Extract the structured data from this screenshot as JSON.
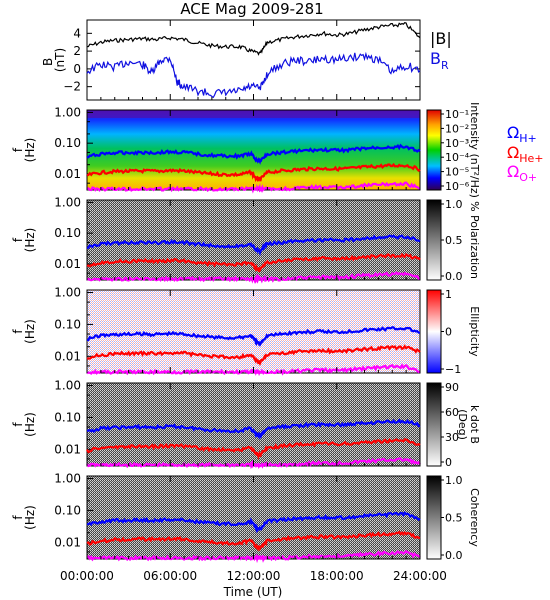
{
  "figure": {
    "title": "ACE Mag 2009-281",
    "xlabel": "Time (UT)",
    "xticks": [
      "00:00:00",
      "06:00:00",
      "12:00:00",
      "18:00:00",
      "24:00:00"
    ]
  },
  "legend": {
    "bmag": "|B|",
    "br_main": "B",
    "br_sub": "R",
    "omega": "Ω",
    "h_sub": "H+",
    "he_sub": "He+",
    "o_sub": "O+"
  },
  "colors": {
    "bmag": "#000000",
    "br": "#1010e0",
    "hplus": "#0000ff",
    "heplus": "#ff0000",
    "oplus": "#ff00ff"
  },
  "chart_data": [
    {
      "type": "line",
      "panel": "magnetic-field",
      "ylabel": "B",
      "yunit": "(nT)",
      "yticks": [
        "4",
        "2",
        "0",
        "−2"
      ],
      "ylim": [
        -3.5,
        5.5
      ],
      "xlim": [
        0,
        24
      ],
      "series": [
        {
          "name": "|B|",
          "x": [
            0,
            1,
            2,
            3,
            4,
            5,
            6,
            7,
            8,
            9,
            10,
            11,
            11.8,
            12.5,
            13,
            14,
            15,
            16,
            17,
            18,
            19,
            20,
            21,
            22,
            23,
            24
          ],
          "values": [
            2.5,
            3.0,
            3.2,
            3.3,
            3.4,
            3.3,
            3.5,
            3.3,
            2.9,
            2.6,
            2.5,
            2.5,
            2.0,
            1.7,
            3.0,
            3.3,
            3.6,
            3.8,
            4.0,
            3.8,
            4.0,
            4.4,
            4.7,
            4.9,
            5.0,
            3.5
          ]
        },
        {
          "name": "B_R",
          "x": [
            0,
            1,
            2,
            3,
            4,
            4.7,
            5.3,
            6,
            6.5,
            7,
            8,
            9,
            10,
            11,
            11.8,
            12.5,
            13,
            14,
            15,
            16,
            17,
            18,
            19,
            20,
            21,
            22,
            23,
            24
          ],
          "values": [
            -0.3,
            0.5,
            0.2,
            0.8,
            0.5,
            -0.5,
            1.0,
            1.2,
            -1.5,
            -2.0,
            -2.5,
            -2.8,
            -2.7,
            -2.5,
            -2.0,
            -2.2,
            -0.5,
            0.5,
            1.0,
            0.8,
            1.2,
            1.0,
            1.3,
            1.5,
            1.0,
            -0.4,
            0.4,
            -0.2
          ]
        }
      ]
    },
    {
      "type": "heatmap",
      "panel": "intensity",
      "ylabel": "f",
      "yunit": "(Hz)",
      "ylog": true,
      "ylim": [
        0.003,
        1.2
      ],
      "yticks": [
        "1.00",
        "0.10",
        "0.01"
      ],
      "colorbar": {
        "palette": "rainbow",
        "label": "Intensity (nT²/Hz)",
        "ticks": [
          "10⁻¹",
          "10⁻²",
          "10⁻³",
          "10⁻⁴",
          "10⁻⁵",
          "10⁻⁶"
        ]
      }
    },
    {
      "type": "heatmap",
      "panel": "polarization",
      "ylabel": "f",
      "yunit": "(Hz)",
      "ylog": true,
      "ylim": [
        0.003,
        1.2
      ],
      "yticks": [
        "1.00",
        "0.10",
        "0.01"
      ],
      "colorbar": {
        "palette": "gray",
        "label": "% Polarization",
        "ticks": [
          "1.0",
          "0.5",
          "0.0"
        ]
      }
    },
    {
      "type": "heatmap",
      "panel": "ellipticity",
      "ylabel": "f",
      "yunit": "(Hz)",
      "ylog": true,
      "ylim": [
        0.003,
        1.2
      ],
      "yticks": [
        "1.00",
        "0.10",
        "0.01"
      ],
      "colorbar": {
        "palette": "bwr",
        "label": "Ellipticity",
        "ticks": [
          "1",
          "0",
          "−1"
        ]
      }
    },
    {
      "type": "heatmap",
      "panel": "wave-normal-angle",
      "ylabel": "f",
      "yunit": "(Hz)",
      "ylog": true,
      "ylim": [
        0.003,
        1.2
      ],
      "yticks": [
        "1.00",
        "0.10",
        "0.01"
      ],
      "colorbar": {
        "palette": "gray",
        "label": "k dot B",
        "unit": "(Deg)",
        "ticks": [
          "90",
          "60",
          "30",
          "0"
        ]
      }
    },
    {
      "type": "heatmap",
      "panel": "coherency",
      "ylabel": "f",
      "yunit": "(Hz)",
      "ylog": true,
      "ylim": [
        0.003,
        1.2
      ],
      "yticks": [
        "1.00",
        "0.10",
        "0.01"
      ],
      "colorbar": {
        "palette": "gray",
        "label": "Coherency",
        "ticks": [
          "1.0",
          "0.5",
          "0.0"
        ]
      }
    },
    {
      "type": "line",
      "panel": "gyrofrequencies",
      "series": [
        {
          "name": "H+",
          "x": [
            0,
            1,
            2,
            3,
            4,
            5,
            6,
            7,
            8,
            9,
            10,
            11,
            11.8,
            12.2,
            12.5,
            13,
            14,
            15,
            16,
            17,
            18,
            19,
            20,
            21,
            22,
            23,
            24
          ],
          "values": [
            0.035,
            0.045,
            0.048,
            0.049,
            0.05,
            0.049,
            0.052,
            0.05,
            0.044,
            0.04,
            0.038,
            0.038,
            0.045,
            0.028,
            0.026,
            0.045,
            0.05,
            0.055,
            0.058,
            0.06,
            0.058,
            0.061,
            0.067,
            0.071,
            0.075,
            0.076,
            0.055
          ]
        },
        {
          "name": "He+",
          "x": [
            0,
            1,
            2,
            3,
            4,
            5,
            6,
            7,
            8,
            9,
            10,
            11,
            11.8,
            12.2,
            12.5,
            13,
            14,
            15,
            16,
            17,
            18,
            19,
            20,
            21,
            22,
            23,
            24
          ],
          "values": [
            0.009,
            0.011,
            0.012,
            0.0122,
            0.0125,
            0.0122,
            0.013,
            0.0125,
            0.011,
            0.01,
            0.0095,
            0.0095,
            0.0112,
            0.007,
            0.0065,
            0.0112,
            0.0125,
            0.0137,
            0.0145,
            0.015,
            0.0145,
            0.0152,
            0.0167,
            0.0177,
            0.0187,
            0.019,
            0.0137
          ]
        },
        {
          "name": "O+",
          "x": [
            0,
            1,
            2,
            3,
            4,
            5,
            6,
            7,
            8,
            9,
            10,
            11,
            11.8,
            12.2,
            12.5,
            13,
            14,
            15,
            16,
            17,
            18,
            19,
            20,
            21,
            22,
            23,
            24
          ],
          "values": [
            0.0022,
            0.0028,
            0.003,
            0.003,
            0.0031,
            0.003,
            0.0032,
            0.0031,
            0.0027,
            0.0025,
            0.0024,
            0.0024,
            0.0028,
            0.0018,
            0.0016,
            0.0028,
            0.0031,
            0.0034,
            0.0036,
            0.0037,
            0.0036,
            0.0038,
            0.0042,
            0.0044,
            0.0047,
            0.0047,
            0.0034
          ]
        }
      ]
    }
  ]
}
